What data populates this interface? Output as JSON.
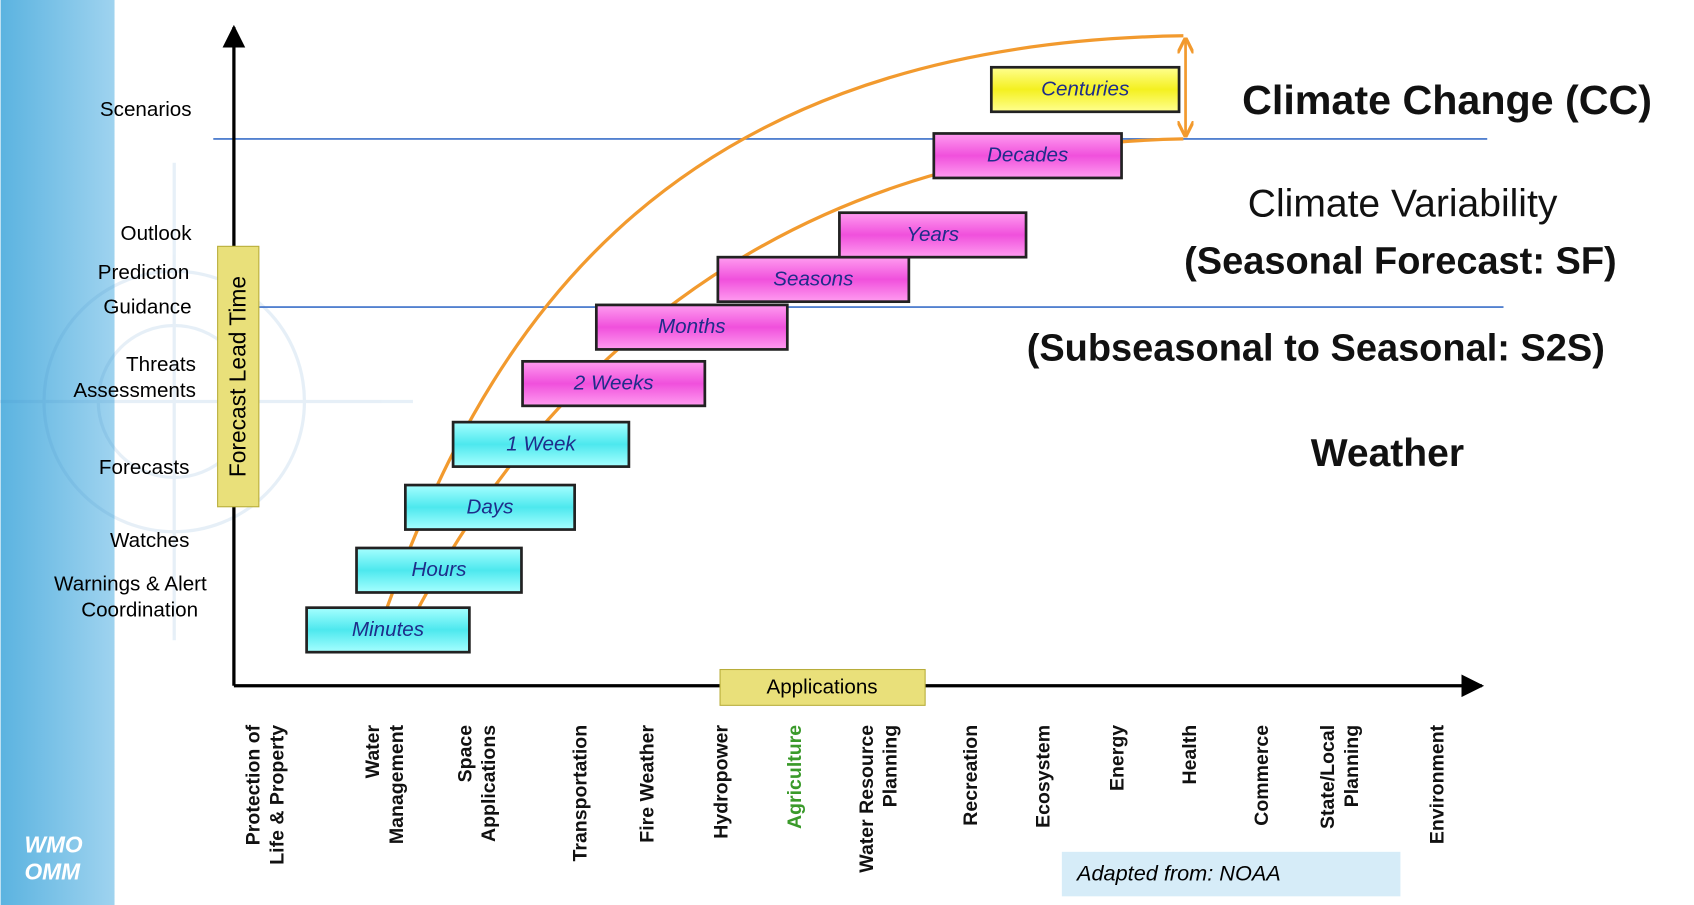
{
  "y_axis": {
    "title": "Forecast Lead Time",
    "labels": [
      [
        "Scenarios"
      ],
      [
        "Outlook"
      ],
      [
        "Prediction"
      ],
      [
        "Guidance"
      ],
      [
        "Threats",
        "Assessments"
      ],
      [
        "Forecasts"
      ],
      [
        "Watches"
      ],
      [
        "Warnings & Alert",
        "Coordination"
      ]
    ]
  },
  "x_axis": {
    "title": "Applications",
    "categories": [
      [
        "Protection of",
        "Life & Property"
      ],
      [
        "Water",
        "Management"
      ],
      [
        "Space",
        "Applications"
      ],
      [
        "Transportation"
      ],
      [
        "Fire Weather"
      ],
      [
        "Hydropower"
      ],
      [
        "Agriculture"
      ],
      [
        "Water Resource",
        "Planning"
      ],
      [
        "Recreation"
      ],
      [
        "Ecosystem"
      ],
      [
        "Energy"
      ],
      [
        "Health"
      ],
      [
        "Commerce"
      ],
      [
        "State/Local",
        "Planning"
      ],
      [
        "Environment"
      ]
    ]
  },
  "boxes": [
    "Minutes",
    "Hours",
    "Days",
    "1 Week",
    "2 Weeks",
    "Months",
    "Seasons",
    "Years",
    "Decades",
    "Centuries"
  ],
  "regions": [
    "Climate Change (CC)",
    "Climate Variability",
    "(Seasonal Forecast: SF)",
    "(Subseasonal to Seasonal: S2S)",
    "Weather"
  ],
  "source": "Adapted  from:  NOAA",
  "logo": [
    "WMO",
    "OMM"
  ]
}
